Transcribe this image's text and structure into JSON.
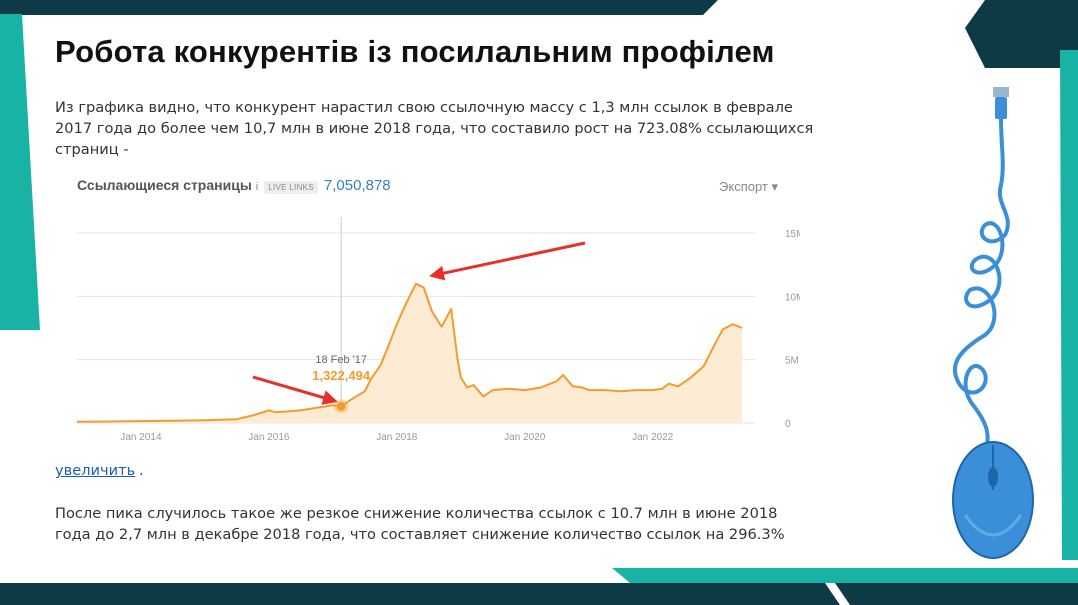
{
  "slide": {
    "title": "Робота конкурентів із посилальним профілем",
    "paragraph1": "Из графика видно, что конкурент нарастил свою ссылочную массу с 1,3 млн ссылок в феврале 2017 года до более чем 10,7 млн в июне 2018 года, что составило рост на 723.08% ссылающихся страниц -",
    "zoom_link": "увеличить",
    "zoom_link_suffix": ".",
    "paragraph2": "После пика случилось такое же резкое снижение количества ссылок с 10.7 млн в июне 2018 года до 2,7 млн в декабре 2018 года, что составляет снижение количество ссылок на 296.3%"
  },
  "colors": {
    "dark_teal": "#0d3a44",
    "teal": "#19b3a6",
    "line": "#f39c2e",
    "area": "#fdebd3",
    "arrow": "#e8302a",
    "link_blue": "#3a7fc1"
  },
  "chart_header": {
    "title": "Ссылающиеся страницы",
    "info": "i",
    "live_badge": "LIVE LINKS",
    "live_count": "7,050,878",
    "export": "Экспорт ▾"
  },
  "tooltip": {
    "date": "18 Feb '17",
    "value": "1,322,494"
  },
  "chart_data": {
    "type": "area",
    "title": "Ссылающиеся страницы",
    "y_ticks": [
      "15M",
      "10M",
      "5M",
      "0"
    ],
    "x_ticks": [
      "Jan 2014",
      "Jan 2016",
      "Jan 2018",
      "Jan 2020",
      "Jan 2022"
    ],
    "ylim": [
      0,
      15000000
    ],
    "xlim": [
      2013.0,
      2023.6
    ],
    "grid": true,
    "series": [
      {
        "x": [
          2013.0,
          2013.5,
          2014.0,
          2014.5,
          2015.0,
          2015.5,
          2015.75,
          2016.0,
          2016.1,
          2016.25,
          2016.5,
          2016.75,
          2017.0,
          2017.13,
          2017.3,
          2017.5,
          2017.6,
          2017.75,
          2017.9,
          2018.0,
          2018.15,
          2018.3,
          2018.42,
          2018.55,
          2018.7,
          2018.85,
          2018.95,
          2019.0,
          2019.1,
          2019.2,
          2019.35,
          2019.5,
          2019.75,
          2020.0,
          2020.25,
          2020.5,
          2020.6,
          2020.75,
          2020.9,
          2021.0,
          2021.25,
          2021.5,
          2021.75,
          2022.0,
          2022.15,
          2022.25,
          2022.4,
          2022.6,
          2022.8,
          2022.9,
          2023.0,
          2023.1,
          2023.25,
          2023.4
        ],
        "y": [
          0.1,
          0.12,
          0.15,
          0.18,
          0.22,
          0.3,
          0.6,
          1.0,
          0.85,
          0.9,
          1.0,
          1.2,
          1.4,
          1.32,
          1.9,
          2.5,
          3.5,
          4.6,
          6.5,
          7.8,
          9.5,
          11.0,
          10.7,
          8.8,
          7.6,
          9.0,
          5.0,
          3.6,
          2.8,
          3.0,
          2.1,
          2.6,
          2.7,
          2.6,
          2.8,
          3.3,
          3.8,
          2.9,
          2.8,
          2.6,
          2.6,
          2.5,
          2.6,
          2.6,
          2.7,
          3.1,
          2.9,
          3.6,
          4.5,
          5.5,
          6.5,
          7.4,
          7.8,
          7.5
        ],
        "unit": "millions"
      }
    ],
    "highlight": {
      "x": 2017.13,
      "y": 1.32
    }
  }
}
